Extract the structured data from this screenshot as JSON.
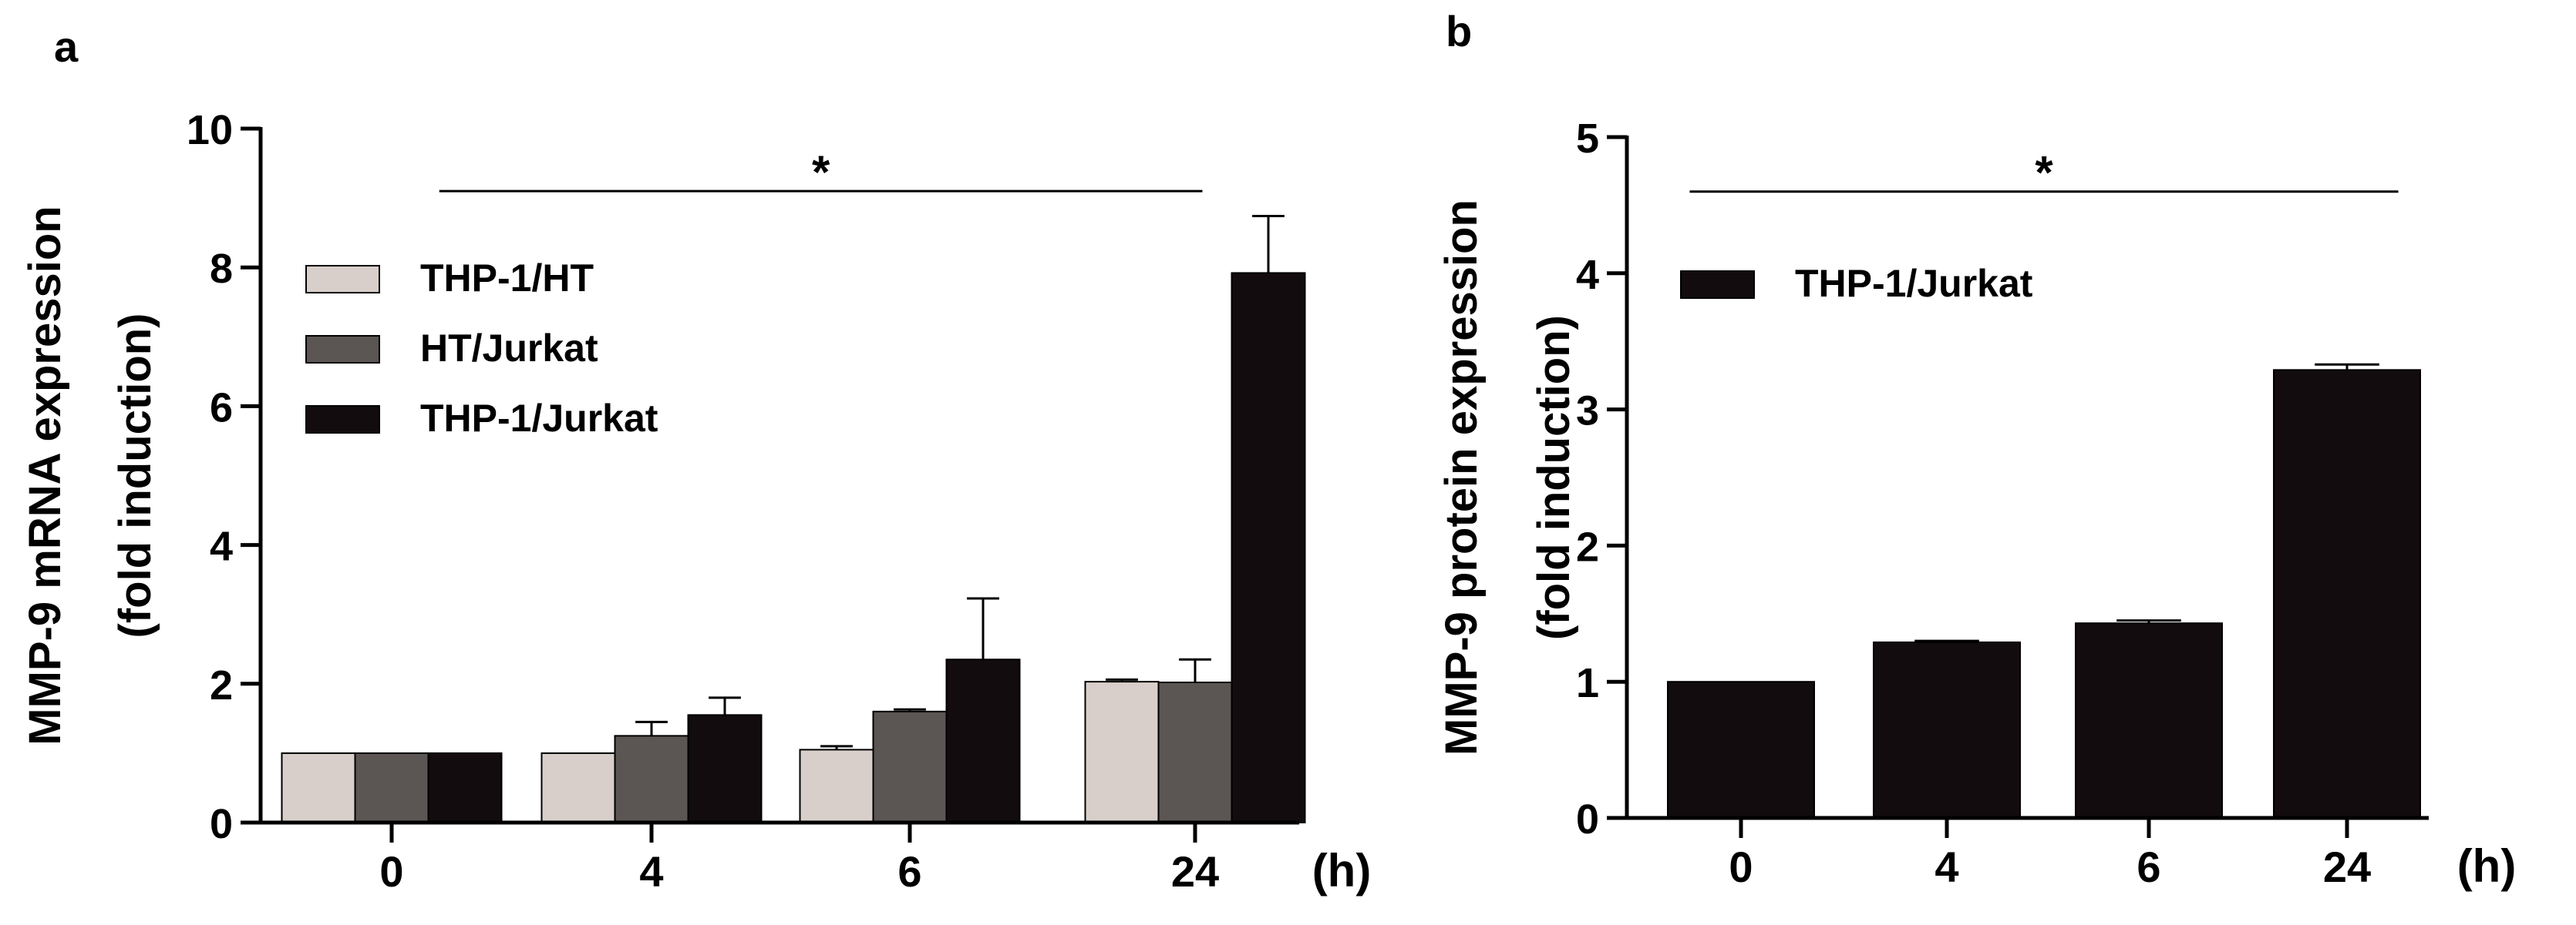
{
  "figure": {
    "panel_a_letter": "a",
    "panel_b_letter": "b"
  },
  "colors": {
    "THP-1/HT": "#d9cfca",
    "HT/Jurkat": "#5b5653",
    "THP-1/Jurkat": "#120c0e",
    "axis": "#000000"
  },
  "chart_data": [
    {
      "panel": "a",
      "type": "bar",
      "title": "",
      "xlabel": "(h)",
      "ylabel": "MMP-9 mRNA expression",
      "ylabel2": "(fold induction)",
      "ylim": [
        0,
        10
      ],
      "yticks": [
        "0",
        "2",
        "4",
        "6",
        "8",
        "10"
      ],
      "categories": [
        "0",
        "4",
        "6",
        "24"
      ],
      "legend_position": "top-left",
      "series": [
        {
          "name": "THP-1/HT",
          "values": [
            1.0,
            1.0,
            1.05,
            2.03
          ],
          "errors": [
            0.0,
            0.0,
            0.05,
            0.03
          ]
        },
        {
          "name": "HT/Jurkat",
          "values": [
            1.0,
            1.25,
            1.6,
            2.02
          ],
          "errors": [
            0.0,
            0.2,
            0.03,
            0.33
          ]
        },
        {
          "name": "THP-1/Jurkat",
          "values": [
            1.0,
            1.55,
            2.35,
            7.92
          ],
          "errors": [
            0.0,
            0.25,
            0.88,
            0.82
          ]
        }
      ],
      "annotation": {
        "text": "*",
        "from_category": "0",
        "to_category": "24",
        "y": 9.1
      }
    },
    {
      "panel": "b",
      "type": "bar",
      "title": "",
      "xlabel": "(h)",
      "ylabel": "MMP-9 protein expression",
      "ylabel2": "(fold induction)",
      "ylim": [
        0,
        5
      ],
      "yticks": [
        "0",
        "1",
        "2",
        "3",
        "4",
        "5"
      ],
      "categories": [
        "0",
        "4",
        "6",
        "24"
      ],
      "legend_position": "top-left",
      "series": [
        {
          "name": "THP-1/Jurkat",
          "values": [
            1.0,
            1.29,
            1.43,
            3.29
          ],
          "errors": [
            0.0,
            0.01,
            0.02,
            0.04
          ]
        }
      ],
      "annotation": {
        "text": "*",
        "from_category": "0",
        "to_category": "24",
        "y": 4.6
      }
    }
  ]
}
